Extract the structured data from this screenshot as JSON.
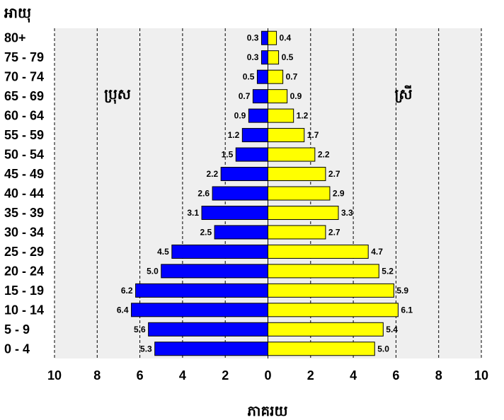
{
  "chart_data": {
    "type": "bar",
    "orientation": "horizontal",
    "subtype": "population-pyramid",
    "ylabel": "អាយុ",
    "xlabel": "ភាគរយ",
    "categories": [
      "0 - 4",
      "5 - 9",
      "10 - 14",
      "15 - 19",
      "20 - 24",
      "25 - 29",
      "30 - 34",
      "35 - 39",
      "40 - 44",
      "45 - 49",
      "50 - 54",
      "55 - 59",
      "60 - 64",
      "65 - 69",
      "70 - 74",
      "75 - 79",
      "80+"
    ],
    "series": [
      {
        "name": "ប្រុស",
        "color": "#0000ff",
        "side": "left",
        "values": [
          5.3,
          5.6,
          6.4,
          6.2,
          5.0,
          4.5,
          2.5,
          3.1,
          2.6,
          2.2,
          1.5,
          1.2,
          0.9,
          0.7,
          0.5,
          0.3,
          0.3
        ],
        "labels": [
          "5.3",
          "5.6",
          "6.4",
          "6.2",
          "5.0",
          "4.5",
          "2.5",
          "3.1",
          "2.6",
          "2.2",
          "1.5",
          "1.2",
          "0.9",
          "0.7",
          "0.5",
          "0.3",
          "0.3"
        ]
      },
      {
        "name": "ស្រី",
        "color": "#ffff00",
        "side": "right",
        "values": [
          5.0,
          5.4,
          6.1,
          5.9,
          5.2,
          4.7,
          2.7,
          3.3,
          2.9,
          2.7,
          2.2,
          1.7,
          1.2,
          0.9,
          0.7,
          0.5,
          0.4
        ],
        "labels": [
          "5.0",
          "5.4",
          "6.1",
          "5.9",
          "5.2",
          "4.7",
          "2.7",
          "3.3",
          "2.9",
          "2.7",
          "2.2",
          "1.7",
          "1.2",
          "0.9",
          "0.7",
          "0.5",
          "0.4"
        ]
      }
    ],
    "xlim": [
      -10,
      10
    ],
    "xticks": [
      -10,
      -8,
      -6,
      -4,
      -2,
      0,
      2,
      4,
      6,
      8,
      10
    ],
    "xtick_labels": [
      "10",
      "8",
      "6",
      "4",
      "2",
      "0",
      "2",
      "4",
      "6",
      "8",
      "10"
    ],
    "grid": "vertical-dashed",
    "background_color": "#efefef",
    "legend": "inline-labels"
  }
}
